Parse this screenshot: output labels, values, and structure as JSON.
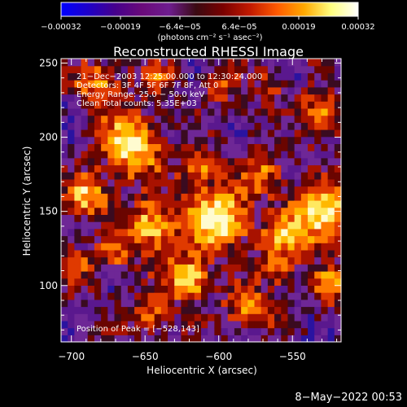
{
  "chart_data": {
    "type": "heatmap",
    "title": "Reconstructed RHESSI Image",
    "xlabel": "Heliocentric X (arcsec)",
    "ylabel": "Heliocentric Y (arcsec)",
    "xlim": [
      -707,
      -517
    ],
    "ylim": [
      62,
      253
    ],
    "xticks": [
      -700,
      -650,
      -600,
      -550
    ],
    "xtick_labels": [
      "−700",
      "−650",
      "−600",
      "−550"
    ],
    "yticks": [
      100,
      150,
      200,
      250
    ],
    "ytick_labels": [
      "100",
      "150",
      "200",
      "250"
    ],
    "colorbar": {
      "min": -0.00032,
      "max": 0.00032,
      "tick_labels": [
        "−0.00032",
        "−0.00019",
        "−6.4e−05",
        "6.4e−05",
        "0.00019",
        "0.00032"
      ],
      "label": "(photons cm⁻² s⁻¹ asec⁻²)",
      "colormap": [
        "#0000ff",
        "#1e00c8",
        "#46008c",
        "#6a0a7a",
        "#6e1d8f",
        "#3a0a12",
        "#7a0000",
        "#c21a00",
        "#ff5a00",
        "#ffa900",
        "#ffff80",
        "#ffffff"
      ]
    },
    "annotations": [
      "21−Dec−2003 12:25:00.000 to 12:30:24.000",
      "Detectors: 3F 4F 5F 6F 7F 8F, Att 0",
      "Energy Range: 25.0 − 50.0 keV",
      "Clean    Total counts: 5.35E+03"
    ],
    "peak_label": "Position of Peak = [−528,143]",
    "peak_position": [
      -528,
      143
    ],
    "grid_resolution": [
      42,
      40
    ]
  },
  "footer": {
    "datestamp": "8−May−2022 00:53"
  }
}
